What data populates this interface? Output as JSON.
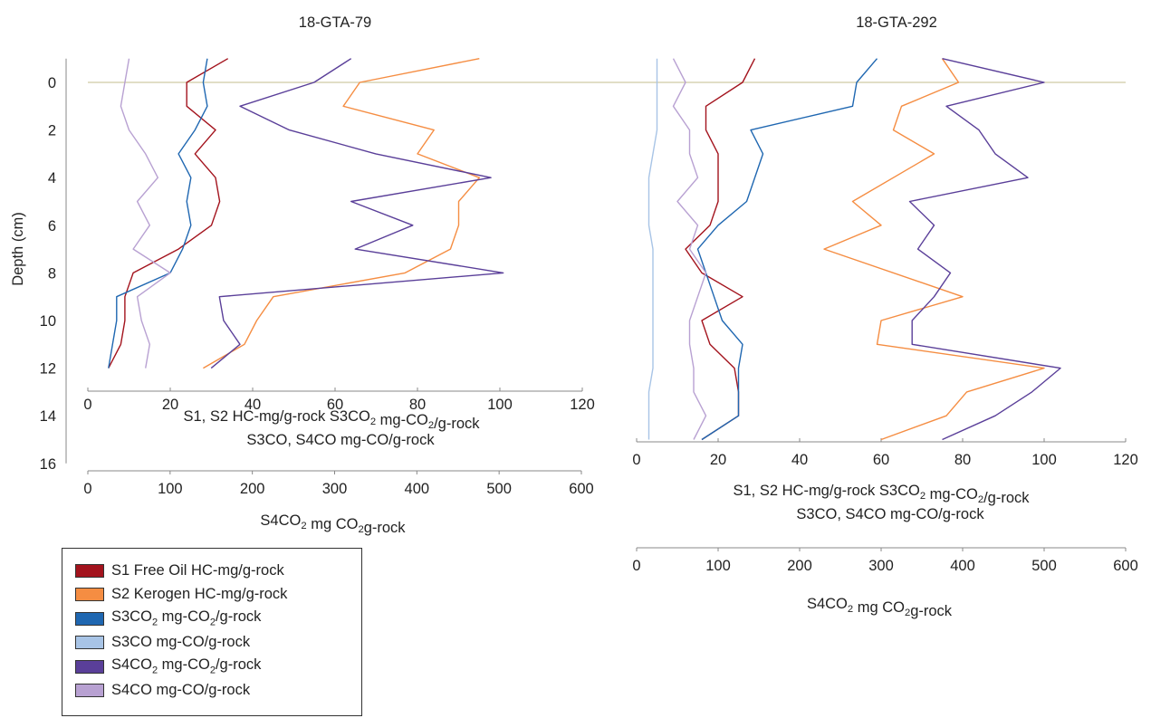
{
  "colors": {
    "S1": "#a3131d",
    "S2": "#f58d42",
    "S3CO2": "#1f67b1",
    "S3CO": "#a8c4e6",
    "S4CO2": "#5a3f99",
    "S4CO": "#b8a1d2",
    "zero_line": "#cfc9a5"
  },
  "legend": {
    "items": [
      {
        "key": "S1",
        "label_html": "S1 Free Oil HC-mg/g-rock"
      },
      {
        "key": "S2",
        "label_html": "S2 Kerogen HC-mg/g-rock"
      },
      {
        "key": "S3CO2",
        "label_html": "S3CO<sub>2</sub> mg-CO<sub>2</sub>/g-rock"
      },
      {
        "key": "S3CO",
        "label_html": "S3CO mg-CO/g-rock"
      },
      {
        "key": "S4CO2",
        "label_html": "S4CO<sub>2</sub> mg-CO<sub>2</sub>/g-rock"
      },
      {
        "key": "S4CO",
        "label_html": "S4CO mg-CO/g-rock"
      }
    ]
  },
  "chart_data": [
    {
      "type": "line",
      "title": "18-GTA-79",
      "ylabel": "Depth (cm)",
      "y_ticks": [
        0,
        2,
        4,
        6,
        8,
        10,
        12,
        14,
        16
      ],
      "ylim": [
        -1,
        16
      ],
      "y_inverted": true,
      "x1_ticks": [
        0,
        20,
        40,
        60,
        80,
        100,
        120
      ],
      "x1_label_lines": [
        "S1, S2 HC-mg/g-rock   S3CO2 mg-CO2/g-rock",
        "S3CO, S4CO mg-CO/g-rock"
      ],
      "x2_ticks": [
        0,
        100,
        200,
        300,
        400,
        500,
        600
      ],
      "x2_label": "S4CO2 mg CO2g-rock",
      "series": [
        {
          "key": "S1",
          "axis": "x1",
          "x": [
            34,
            24,
            24,
            31,
            26,
            31,
            32,
            30,
            22,
            11,
            9,
            9,
            8,
            5
          ],
          "depth": [
            -1,
            0,
            1,
            2,
            3,
            4,
            5,
            6,
            7,
            8,
            9,
            10,
            11,
            12
          ]
        },
        {
          "key": "S2",
          "axis": "x1",
          "x": [
            95,
            66,
            62,
            84,
            80,
            95,
            90,
            90,
            88,
            77,
            45,
            41,
            38,
            28
          ],
          "depth": [
            -1,
            0,
            1,
            2,
            3,
            4,
            5,
            6,
            7,
            8,
            9,
            10,
            11,
            12
          ]
        },
        {
          "key": "S3CO2",
          "axis": "x1",
          "x": [
            29,
            28,
            29,
            26,
            22,
            25,
            24,
            25,
            23,
            20,
            7,
            7,
            6,
            5
          ],
          "depth": [
            -1,
            0,
            1,
            2,
            3,
            4,
            5,
            6,
            7,
            8,
            9,
            10,
            11,
            12
          ]
        },
        {
          "key": "S4CO2",
          "axis": "x2",
          "x": [
            320,
            275,
            185,
            245,
            350,
            490,
            320,
            395,
            325,
            505,
            160,
            165,
            185,
            150
          ],
          "depth": [
            -1,
            0,
            1,
            2,
            3,
            4,
            5,
            6,
            7,
            8,
            9,
            10,
            11,
            12
          ]
        },
        {
          "key": "S4CO",
          "axis": "x1",
          "x": [
            10,
            9,
            8,
            10,
            14,
            17,
            12,
            15,
            11,
            20,
            12,
            13,
            15,
            14
          ],
          "depth": [
            -1,
            0,
            1,
            2,
            3,
            4,
            5,
            6,
            7,
            8,
            9,
            10,
            11,
            12
          ]
        }
      ]
    },
    {
      "type": "line",
      "title": "18-GTA-292",
      "ylim": [
        -1,
        16
      ],
      "y_inverted": true,
      "x1_ticks": [
        0,
        20,
        40,
        60,
        80,
        100,
        120
      ],
      "x1_label_lines": [
        "S1, S2 HC-mg/g-rock   S3CO2 mg-CO2/g-rock",
        "S3CO, S4CO mg-CO/g-rock"
      ],
      "x2_ticks": [
        0,
        100,
        200,
        300,
        400,
        500,
        600
      ],
      "x2_label": "S4CO2 mg CO2g-rock",
      "series": [
        {
          "key": "S1",
          "axis": "x1",
          "x": [
            29,
            26,
            17,
            17,
            20,
            20,
            20,
            18,
            12,
            16,
            26,
            16,
            18,
            24,
            25,
            25,
            16
          ],
          "depth": [
            -1,
            0,
            1,
            2,
            3,
            4,
            5,
            6,
            7,
            8,
            9,
            10,
            11,
            12,
            13,
            14,
            15
          ]
        },
        {
          "key": "S2",
          "axis": "x1",
          "x": [
            75,
            79,
            65,
            63,
            73,
            53,
            60,
            46,
            80,
            60,
            59,
            100,
            81,
            76,
            60
          ],
          "depth": [
            -1,
            0,
            1,
            2,
            3,
            5,
            6,
            7,
            9,
            10,
            11,
            12,
            13,
            14,
            15
          ]
        },
        {
          "key": "S3CO2",
          "axis": "x1",
          "x": [
            59,
            54,
            53,
            28,
            31,
            27,
            20,
            15,
            17,
            19,
            21,
            26,
            25,
            25,
            16
          ],
          "depth": [
            -1,
            0,
            1,
            2,
            3,
            5,
            6,
            7,
            8,
            9,
            10,
            11,
            12,
            14,
            15
          ]
        },
        {
          "key": "S3CO",
          "axis": "x1",
          "x": [
            5,
            5,
            5,
            5,
            4,
            3,
            3,
            3,
            4,
            4,
            4,
            4,
            4,
            4,
            3,
            3,
            3
          ],
          "depth": [
            -1,
            0,
            1,
            2,
            3,
            4,
            5,
            6,
            7,
            8,
            9,
            10,
            11,
            12,
            13,
            14,
            15
          ]
        },
        {
          "key": "S4CO2",
          "axis": "x2",
          "x": [
            375,
            500,
            380,
            420,
            440,
            480,
            335,
            365,
            345,
            385,
            365,
            338,
            338,
            520,
            485,
            440,
            375
          ],
          "depth": [
            -1,
            0,
            1,
            2,
            3,
            4,
            5,
            6,
            7,
            8,
            9,
            10,
            11,
            12,
            13,
            14,
            15
          ]
        },
        {
          "key": "S4CO",
          "axis": "x1",
          "x": [
            9,
            12,
            9,
            13,
            13,
            15,
            10,
            15,
            13,
            17,
            15,
            13,
            13,
            14,
            14,
            17,
            14
          ],
          "depth": [
            -1,
            0,
            1,
            2,
            3,
            4,
            5,
            6,
            7,
            8,
            9,
            10,
            11,
            12,
            13,
            14,
            15
          ]
        }
      ]
    }
  ]
}
